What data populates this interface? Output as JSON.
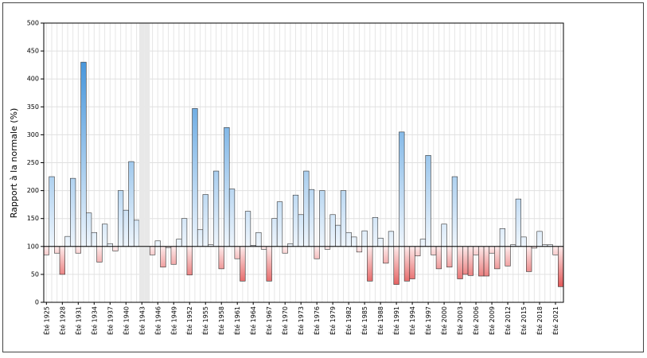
{
  "chart_data": {
    "type": "bar",
    "y_label": "Rapport à la normale (%)",
    "categories": [
      "Été 1925",
      null,
      null,
      "Été 1928",
      null,
      null,
      "Été 1931",
      null,
      null,
      "Été 1934",
      null,
      null,
      "Été 1937",
      null,
      null,
      "Été 1940",
      null,
      null,
      "Été 1943",
      null,
      null,
      "Été 1946",
      null,
      null,
      "Été 1949",
      null,
      null,
      "Été 1952",
      null,
      null,
      "Été 1955",
      null,
      null,
      "Été 1958",
      null,
      null,
      "Été 1961",
      null,
      null,
      "Été 1964",
      null,
      null,
      "Été 1967",
      null,
      null,
      "Été 1970",
      null,
      null,
      "Été 1973",
      null,
      null,
      "Été 1976",
      null,
      null,
      "Été 1979",
      null,
      null,
      "Été 1982",
      null,
      null,
      "Été 1985",
      null,
      null,
      "Été 1988",
      null,
      null,
      "Été 1991",
      null,
      null,
      "Été 1994",
      null,
      null,
      "Été 1997",
      null,
      null,
      "Été 2000",
      null,
      null,
      "Été 2003",
      null,
      null,
      "Été 2006",
      null,
      null,
      "Été 2009",
      null,
      null,
      "Été 2012",
      null,
      null,
      "Été 2015",
      null,
      null,
      "Été 2018",
      null,
      null,
      "Été 2021",
      null
    ],
    "values": [
      85,
      225,
      88,
      50,
      118,
      222,
      88,
      430,
      160,
      125,
      72,
      140,
      105,
      92,
      200,
      165,
      252,
      147,
      null,
      null,
      85,
      110,
      63,
      98,
      68,
      113,
      150,
      49,
      347,
      130,
      193,
      103,
      235,
      60,
      313,
      203,
      78,
      38,
      163,
      102,
      125,
      95,
      38,
      150,
      180,
      88,
      105,
      192,
      157,
      235,
      202,
      78,
      200,
      95,
      157,
      138,
      200,
      125,
      117,
      90,
      128,
      38,
      152,
      115,
      70,
      127,
      32,
      305,
      38,
      42,
      83,
      113,
      263,
      85,
      60,
      140,
      63,
      225,
      42,
      50,
      48,
      85,
      47,
      47,
      88,
      60,
      132,
      65,
      103,
      185,
      117,
      55,
      97,
      127,
      103,
      103,
      85,
      28
    ],
    "baseline": 100,
    "above_color": "#3a8fd9",
    "below_color": "#d92020",
    "ylim": [
      0,
      500
    ],
    "yticks": [
      0,
      50,
      100,
      150,
      200,
      250,
      300,
      350,
      400,
      450,
      500
    ],
    "grid": true
  }
}
